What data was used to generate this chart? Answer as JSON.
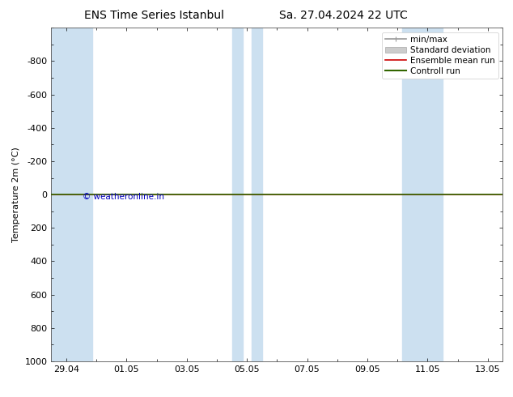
{
  "title_left": "ENS Time Series Istanbul",
  "title_right": "Sa. 27.04.2024 22 UTC",
  "ylabel": "Temperature 2m (°C)",
  "ylim_top": -1000,
  "ylim_bottom": 1000,
  "yticks": [
    -800,
    -600,
    -400,
    -200,
    0,
    200,
    400,
    600,
    800,
    1000
  ],
  "xtick_labels": [
    "29.04",
    "01.05",
    "03.05",
    "05.05",
    "07.05",
    "09.05",
    "11.05",
    "13.05"
  ],
  "xtick_positions": [
    0,
    2,
    4,
    6,
    8,
    10,
    12,
    14
  ],
  "xlim": [
    -0.5,
    14.5
  ],
  "shaded_bands": [
    [
      -0.5,
      0.85
    ],
    [
      5.5,
      5.85
    ],
    [
      6.15,
      6.5
    ],
    [
      11.15,
      11.5
    ],
    [
      11.5,
      12.5
    ]
  ],
  "band_color": "#cce0f0",
  "green_line_y": 0,
  "green_line_color": "#336600",
  "red_line_y": 0,
  "red_line_color": "#cc0000",
  "background_color": "#ffffff",
  "plot_bg_color": "#ffffff",
  "copyright_text": "© weatheronline.in",
  "copyright_color": "#0000bb",
  "legend_items": [
    {
      "label": "min/max",
      "color": "#999999",
      "lw": 1.2
    },
    {
      "label": "Standard deviation",
      "color": "#cccccc",
      "lw": 6
    },
    {
      "label": "Ensemble mean run",
      "color": "#cc0000",
      "lw": 1.2
    },
    {
      "label": "Controll run",
      "color": "#336600",
      "lw": 1.5
    }
  ],
  "title_fontsize": 10,
  "axis_label_fontsize": 8,
  "tick_fontsize": 8,
  "legend_fontsize": 7.5
}
